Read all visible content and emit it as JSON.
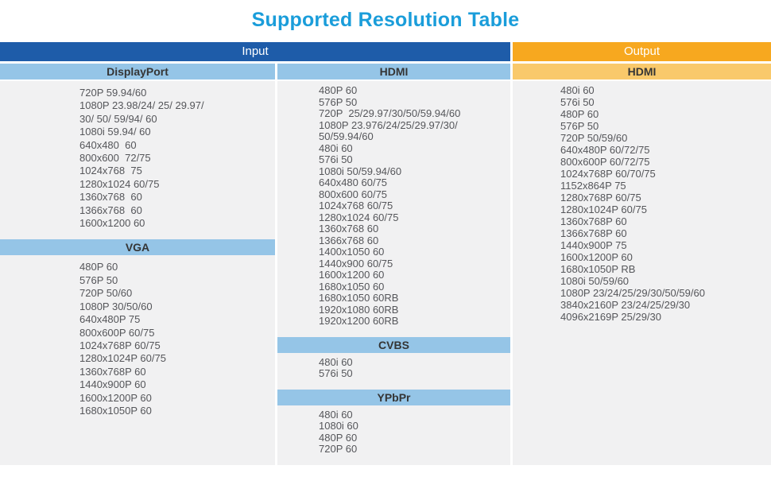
{
  "title": "Supported Resolution Table",
  "colors": {
    "title": "#1A9DDA",
    "input_header_bg": "#1E5CA9",
    "output_header_bg": "#F7A81F",
    "input_subheader_bg": "#95C5E7",
    "output_subheader_bg": "#F9C96B",
    "body_bg": "#F1F1F2"
  },
  "headers": {
    "input": "Input",
    "output": "Output"
  },
  "columns": [
    {
      "name": "input-column-1",
      "theme": "blue",
      "sections": [
        {
          "header": "DisplayPort",
          "items": [
            "720P 59.94/60",
            "1080P 23.98/24/ 25/ 29.97/\n30/ 50/ 59/94/ 60",
            "1080i 59.94/ 60",
            "640x480  60",
            "800x600  72/75",
            "1024x768  75",
            "1280x1024 60/75",
            "1360x768  60",
            "1366x768  60",
            "1600x1200 60"
          ]
        },
        {
          "header": "VGA",
          "items": [
            "480P 60",
            "576P 50",
            "720P 50/60",
            "1080P 30/50/60",
            "640x480P 75",
            "800x600P 60/75",
            "1024x768P 60/75",
            "1280x1024P 60/75",
            "1360x768P 60",
            "1440x900P 60",
            "1600x1200P 60",
            "1680x1050P 60"
          ]
        }
      ]
    },
    {
      "name": "input-column-2",
      "theme": "blue",
      "sections": [
        {
          "header": "HDMI",
          "items": [
            "480P 60",
            "576P 50",
            "720P  25/29.97/30/50/59.94/60",
            "1080P 23.976/24/25/29.97/30/\n50/59.94/60",
            "480i 60",
            "576i 50",
            "1080i 50/59.94/60",
            "640x480 60/75",
            "800x600 60/75",
            "1024x768 60/75",
            "1280x1024 60/75",
            "1360x768 60",
            "1366x768 60",
            "1400x1050 60",
            "1440x900 60/75",
            "1600x1200 60",
            "1680x1050 60",
            "1680x1050 60RB",
            "1920x1080 60RB",
            "1920x1200 60RB"
          ]
        },
        {
          "header": "CVBS",
          "items": [
            "480i 60",
            "576i 50"
          ]
        },
        {
          "header": "YPbPr",
          "items": [
            "480i 60",
            "1080i 60",
            "480P 60",
            "720P 60"
          ]
        }
      ]
    },
    {
      "name": "output-column",
      "theme": "orange",
      "sections": [
        {
          "header": "HDMI",
          "items": [
            "480i 60",
            "576i 50",
            "480P 60",
            "576P 50",
            "720P 50/59/60",
            "640x480P 60/72/75",
            "800x600P 60/72/75",
            "1024x768P 60/70/75",
            "1152x864P 75",
            "1280x768P 60/75",
            "1280x1024P 60/75",
            "1360x768P 60",
            "1366x768P 60",
            "1440x900P 75",
            "1600x1200P 60",
            "1680x1050P RB",
            "1080i 50/59/60",
            "1080P 23/24/25/29/30/50/59/60",
            "3840x2160P 23/24/25/29/30",
            "4096x2169P 25/29/30"
          ]
        }
      ]
    }
  ]
}
